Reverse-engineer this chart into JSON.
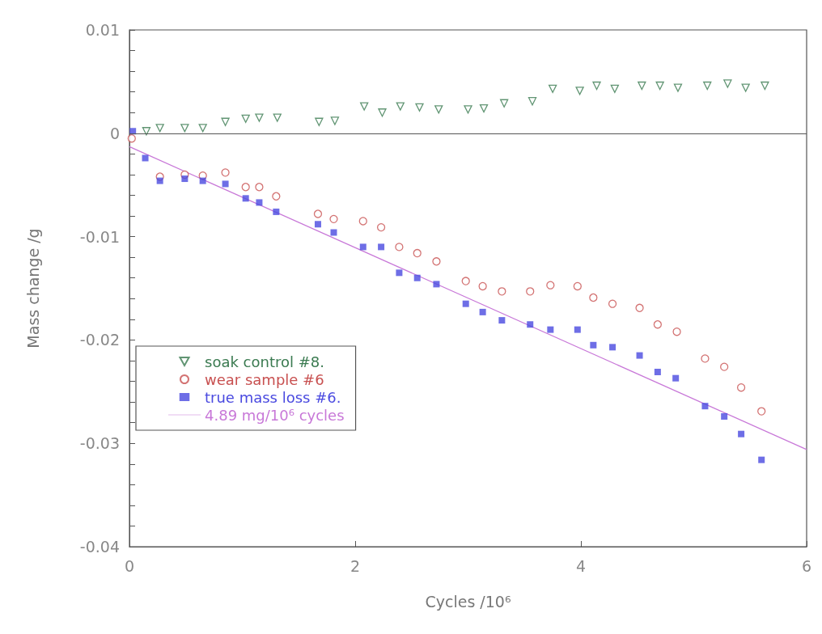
{
  "chart_data": {
    "type": "scatter",
    "xlabel": "Cycles /10⁶",
    "ylabel": "Mass change /g",
    "xlim": [
      0,
      6
    ],
    "xticks": [
      0,
      2,
      4,
      6
    ],
    "ylim": [
      -0.04,
      0.01
    ],
    "yticks": [
      -0.04,
      {
        "value": -0.038,
        "label": null
      },
      {
        "value": -0.036,
        "label": null
      },
      {
        "value": -0.034,
        "label": null
      },
      {
        "value": -0.032,
        "label": null
      },
      -0.03,
      {
        "value": -0.028,
        "label": null
      },
      {
        "value": -0.026,
        "label": null
      },
      {
        "value": -0.024,
        "label": null
      },
      {
        "value": -0.022,
        "label": null
      },
      -0.02,
      {
        "value": -0.018,
        "label": null
      },
      {
        "value": -0.016,
        "label": null
      },
      {
        "value": -0.014,
        "label": null
      },
      {
        "value": -0.012,
        "label": null
      },
      -0.01,
      {
        "value": -0.008,
        "label": null
      },
      {
        "value": -0.006,
        "label": null
      },
      {
        "value": -0.004,
        "label": null
      },
      {
        "value": -0.002,
        "label": null
      },
      0,
      {
        "value": 0.002,
        "label": null
      },
      {
        "value": 0.004,
        "label": null
      },
      {
        "value": 0.006,
        "label": null
      },
      {
        "value": 0.008,
        "label": null
      },
      0.01
    ],
    "grid": false,
    "legend": "left",
    "ref_lines": [
      {
        "axis": "y",
        "value": 0,
        "color": "#555555"
      }
    ],
    "series": [
      {
        "name": "soak control #8.",
        "color": "#3a7a50",
        "marker": "triangle",
        "x": [
          0.15,
          0.27,
          0.49,
          0.65,
          0.85,
          1.03,
          1.15,
          1.31,
          1.68,
          1.82,
          2.08,
          2.24,
          2.4,
          2.57,
          2.74,
          3.0,
          3.14,
          3.32,
          3.57,
          3.75,
          3.99,
          4.14,
          4.3,
          4.54,
          4.7,
          4.86,
          5.12,
          5.3,
          5.46,
          5.63
        ],
        "values": [
          0.0002,
          0.0005,
          0.0005,
          0.0005,
          0.0011,
          0.0014,
          0.0015,
          0.0015,
          0.0011,
          0.0012,
          0.0026,
          0.002,
          0.0026,
          0.0025,
          0.0023,
          0.0023,
          0.0024,
          0.0029,
          0.0031,
          0.0043,
          0.0041,
          0.0046,
          0.0043,
          0.0046,
          0.0046,
          0.0044,
          0.0046,
          0.0048,
          0.0044,
          0.0046
        ]
      },
      {
        "name": "wear sample #6",
        "color": "#c85050",
        "marker": "circle",
        "x": [
          0.02,
          0.27,
          0.49,
          0.65,
          0.85,
          1.03,
          1.15,
          1.3,
          1.67,
          1.81,
          2.07,
          2.23,
          2.39,
          2.55,
          2.72,
          2.98,
          3.13,
          3.3,
          3.55,
          3.73,
          3.97,
          4.11,
          4.28,
          4.52,
          4.68,
          4.85,
          5.1,
          5.27,
          5.42,
          5.6
        ],
        "values": [
          -0.0005,
          -0.0042,
          -0.004,
          -0.0041,
          -0.0038,
          -0.0052,
          -0.0052,
          -0.0061,
          -0.0078,
          -0.0083,
          -0.0085,
          -0.0091,
          -0.011,
          -0.0116,
          -0.0124,
          -0.0143,
          -0.0148,
          -0.0153,
          -0.0153,
          -0.0147,
          -0.0148,
          -0.0159,
          -0.0165,
          -0.0169,
          -0.0185,
          -0.0192,
          -0.0218,
          -0.0226,
          -0.0246,
          -0.0269
        ]
      },
      {
        "name": "true mass loss #6.",
        "color": "#4a4ae0",
        "marker": "square",
        "x": [
          0.03,
          0.14,
          0.27,
          0.49,
          0.65,
          0.85,
          1.03,
          1.15,
          1.3,
          1.67,
          1.81,
          2.07,
          2.23,
          2.39,
          2.55,
          2.72,
          2.98,
          3.13,
          3.3,
          3.55,
          3.73,
          3.97,
          4.11,
          4.28,
          4.52,
          4.68,
          4.84,
          5.1,
          5.27,
          5.42,
          5.6
        ],
        "values": [
          0.0002,
          -0.0024,
          -0.0046,
          -0.0044,
          -0.0046,
          -0.0049,
          -0.0063,
          -0.0067,
          -0.0076,
          -0.0088,
          -0.0096,
          -0.011,
          -0.011,
          -0.0135,
          -0.014,
          -0.0146,
          -0.0165,
          -0.0173,
          -0.0181,
          -0.0185,
          -0.019,
          -0.019,
          -0.0205,
          -0.0207,
          -0.0215,
          -0.0231,
          -0.0237,
          -0.0264,
          -0.0274,
          -0.0291,
          -0.0316
        ]
      },
      {
        "name": "4.89 mg/10⁶ cycles",
        "color": "#c878d8",
        "type": "line",
        "marker": "none",
        "x": [
          0,
          6
        ],
        "values": [
          -0.0013,
          -0.0306
        ]
      }
    ]
  }
}
